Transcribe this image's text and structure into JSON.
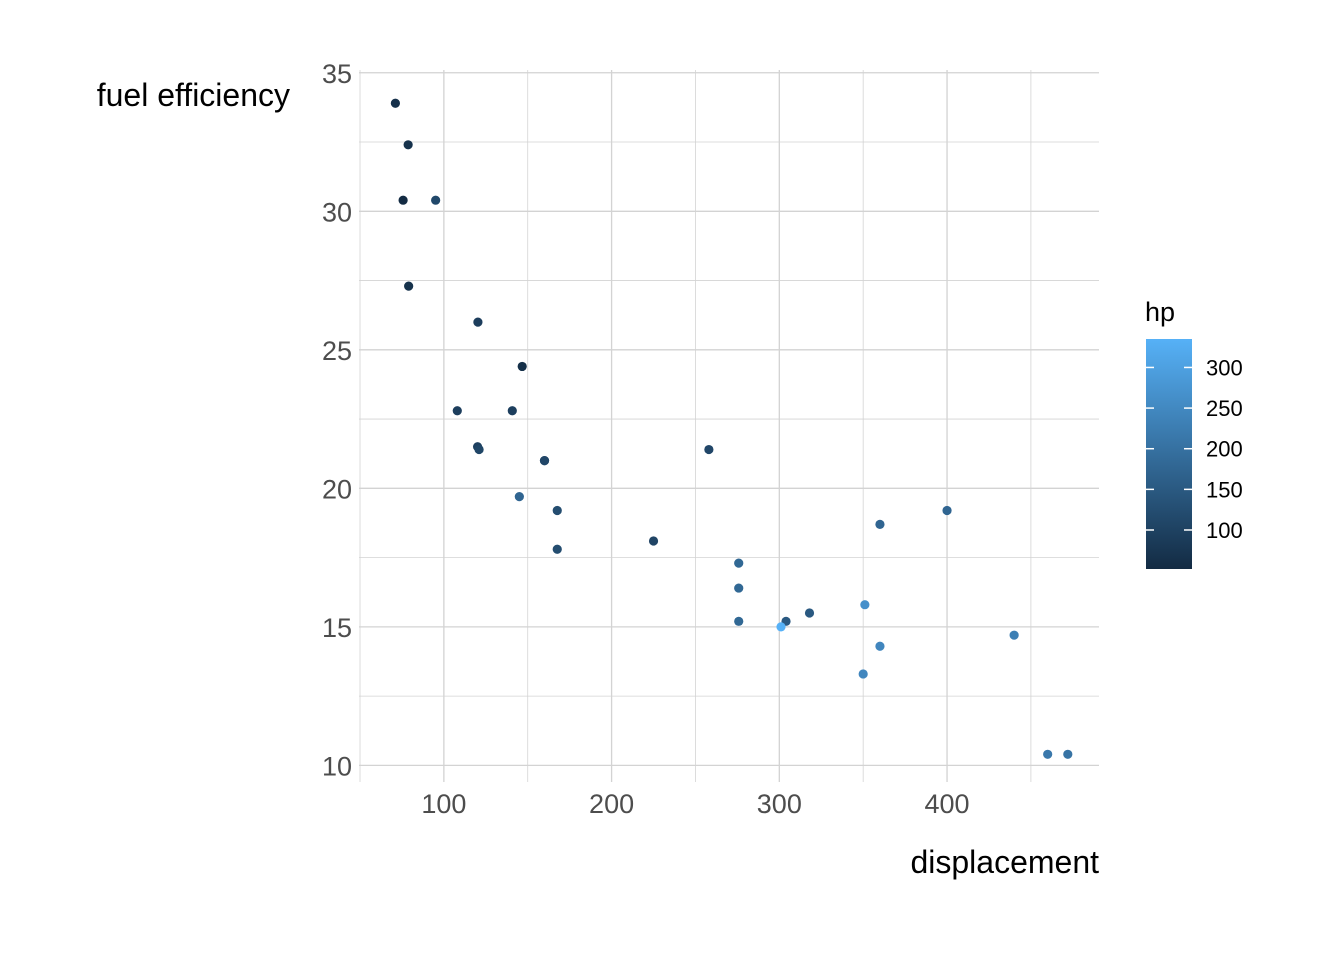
{
  "chart_data": {
    "type": "scatter",
    "xlabel": "displacement",
    "ylabel": "fuel efficiency",
    "xlim": [
      49.4,
      490.6
    ],
    "ylim": [
      9.4,
      35.1
    ],
    "x_ticks": [
      100,
      200,
      300,
      400
    ],
    "y_ticks": [
      10,
      15,
      20,
      25,
      30,
      35
    ],
    "grid": true,
    "color_variable": "hp",
    "color_scale": {
      "title": "hp",
      "range": [
        52,
        335
      ],
      "ticks": [
        100,
        150,
        200,
        250,
        300
      ],
      "low_color": "#132B43",
      "high_color": "#56B1F7"
    },
    "legend_position": "right",
    "points": [
      {
        "x": 160,
        "y": 21.0,
        "hp": 110
      },
      {
        "x": 160,
        "y": 21.0,
        "hp": 110
      },
      {
        "x": 108,
        "y": 22.8,
        "hp": 93
      },
      {
        "x": 258,
        "y": 21.4,
        "hp": 110
      },
      {
        "x": 360,
        "y": 18.7,
        "hp": 175
      },
      {
        "x": 225,
        "y": 18.1,
        "hp": 105
      },
      {
        "x": 360,
        "y": 14.3,
        "hp": 245
      },
      {
        "x": 146.7,
        "y": 24.4,
        "hp": 62
      },
      {
        "x": 140.8,
        "y": 22.8,
        "hp": 95
      },
      {
        "x": 167.6,
        "y": 19.2,
        "hp": 123
      },
      {
        "x": 167.6,
        "y": 17.8,
        "hp": 123
      },
      {
        "x": 275.8,
        "y": 16.4,
        "hp": 180
      },
      {
        "x": 275.8,
        "y": 17.3,
        "hp": 180
      },
      {
        "x": 275.8,
        "y": 15.2,
        "hp": 180
      },
      {
        "x": 472,
        "y": 10.4,
        "hp": 205
      },
      {
        "x": 460,
        "y": 10.4,
        "hp": 215
      },
      {
        "x": 440,
        "y": 14.7,
        "hp": 230
      },
      {
        "x": 78.7,
        "y": 32.4,
        "hp": 66
      },
      {
        "x": 75.7,
        "y": 30.4,
        "hp": 52
      },
      {
        "x": 71.1,
        "y": 33.9,
        "hp": 65
      },
      {
        "x": 120.1,
        "y": 21.5,
        "hp": 97
      },
      {
        "x": 318,
        "y": 15.5,
        "hp": 150
      },
      {
        "x": 304,
        "y": 15.2,
        "hp": 150
      },
      {
        "x": 350,
        "y": 13.3,
        "hp": 245
      },
      {
        "x": 400,
        "y": 19.2,
        "hp": 175
      },
      {
        "x": 79,
        "y": 27.3,
        "hp": 66
      },
      {
        "x": 120.3,
        "y": 26.0,
        "hp": 91
      },
      {
        "x": 95.1,
        "y": 30.4,
        "hp": 113
      },
      {
        "x": 351,
        "y": 15.8,
        "hp": 264
      },
      {
        "x": 145,
        "y": 19.7,
        "hp": 175
      },
      {
        "x": 301,
        "y": 15.0,
        "hp": 335
      },
      {
        "x": 121,
        "y": 21.4,
        "hp": 109
      }
    ]
  }
}
